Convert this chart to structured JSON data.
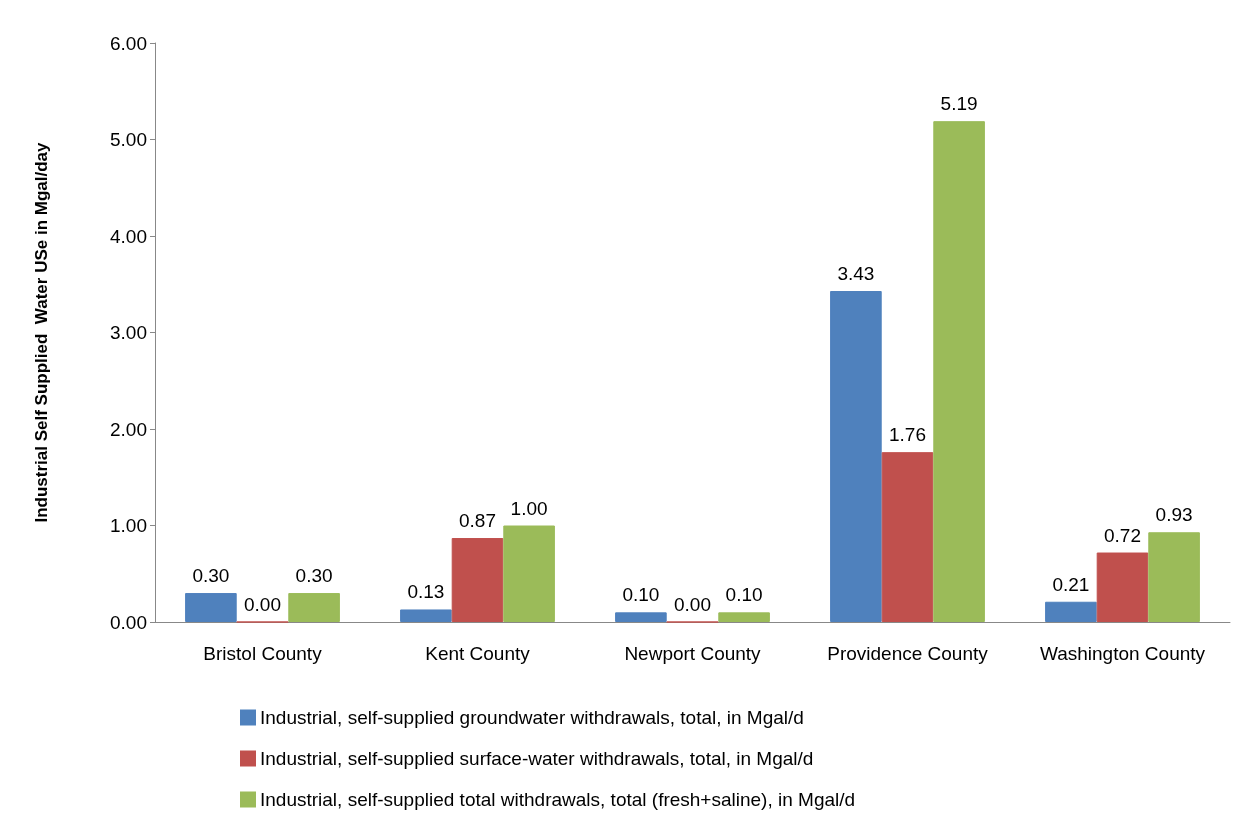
{
  "chart_data": {
    "type": "bar",
    "ylabel": "Industrial Self Supplied  Water USe in Mgal/day",
    "categories": [
      "Bristol County",
      "Kent County",
      "Newport County",
      "Providence County",
      "Washington County"
    ],
    "series": [
      {
        "name": "Industrial, self-supplied groundwater withdrawals, total, in Mgal/d",
        "color": "#4f81bd",
        "values": [
          0.3,
          0.13,
          0.1,
          3.43,
          0.21
        ],
        "value_labels": [
          "0.30",
          "0.13",
          "0.10",
          "3.43",
          "0.21"
        ]
      },
      {
        "name": "Industrial, self-supplied surface-water withdrawals, total, in Mgal/d",
        "color": "#c0504d",
        "values": [
          0.0,
          0.87,
          0.0,
          1.76,
          0.72
        ],
        "value_labels": [
          "0.00",
          "0.87",
          "0.00",
          "1.76",
          "0.72"
        ]
      },
      {
        "name": "Industrial, self-supplied total withdrawals, total (fresh+saline), in Mgal/d",
        "color": "#9bbb59",
        "values": [
          0.3,
          1.0,
          0.1,
          5.19,
          0.93
        ],
        "value_labels": [
          "0.30",
          "1.00",
          "0.10",
          "5.19",
          "0.93"
        ]
      }
    ],
    "ylim": [
      0,
      6
    ],
    "yticks": [
      {
        "value": 0,
        "label": "0.00"
      },
      {
        "value": 1,
        "label": "1.00"
      },
      {
        "value": 2,
        "label": "2.00"
      },
      {
        "value": 3,
        "label": "3.00"
      },
      {
        "value": 4,
        "label": "4.00"
      },
      {
        "value": 5,
        "label": "5.00"
      },
      {
        "value": 6,
        "label": "6.00"
      }
    ],
    "grid": false,
    "legend": "bottom"
  }
}
